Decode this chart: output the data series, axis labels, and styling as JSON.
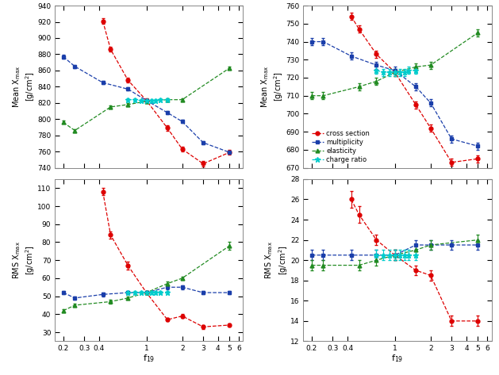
{
  "proton_mean_xmax": {
    "cross_section": {
      "x": [
        0.43,
        0.5,
        0.7,
        1.0,
        1.5,
        2.0,
        3.0,
        5.0
      ],
      "y": [
        921,
        886,
        848,
        823,
        789,
        763,
        745,
        759
      ],
      "yerr": [
        3,
        3,
        3,
        3,
        3,
        3,
        3,
        3
      ]
    },
    "multiplicity": {
      "x": [
        0.2,
        0.25,
        0.43,
        0.7,
        1.0,
        1.5,
        2.0,
        3.0,
        5.0
      ],
      "y": [
        877,
        865,
        845,
        837,
        823,
        808,
        797,
        771,
        759
      ],
      "yerr": [
        2,
        2,
        2,
        2,
        2,
        2,
        2,
        2,
        2
      ]
    },
    "elasticity": {
      "x": [
        0.2,
        0.25,
        0.5,
        0.7,
        1.0,
        1.5,
        2.0,
        5.0
      ],
      "y": [
        796,
        786,
        815,
        818,
        822,
        824,
        824,
        863
      ],
      "yerr": [
        2,
        2,
        2,
        2,
        2,
        2,
        2,
        2
      ]
    },
    "charge_ratio": {
      "x": [
        0.7,
        0.8,
        0.9,
        1.0,
        1.1,
        1.2,
        1.3,
        1.5
      ],
      "y": [
        824,
        824,
        823,
        823,
        823,
        823,
        824,
        824
      ],
      "yerr": [
        2,
        2,
        2,
        2,
        2,
        2,
        2,
        2
      ]
    }
  },
  "proton_rms_xmax": {
    "cross_section": {
      "x": [
        0.43,
        0.5,
        0.7,
        1.0,
        1.5,
        2.0,
        3.0,
        5.0
      ],
      "y": [
        108,
        84,
        67,
        52,
        37,
        39,
        33,
        34
      ],
      "yerr": [
        2,
        2,
        2,
        1,
        1,
        1,
        1,
        1
      ]
    },
    "multiplicity": {
      "x": [
        0.2,
        0.25,
        0.43,
        0.7,
        1.0,
        1.5,
        2.0,
        3.0,
        5.0
      ],
      "y": [
        52,
        49,
        51,
        52,
        52,
        55,
        55,
        52,
        52
      ],
      "yerr": [
        1,
        1,
        1,
        1,
        1,
        1,
        1,
        1,
        1
      ]
    },
    "elasticity": {
      "x": [
        0.2,
        0.25,
        0.5,
        0.7,
        1.0,
        1.5,
        2.0,
        5.0
      ],
      "y": [
        42,
        45,
        47,
        49,
        52,
        57,
        60,
        78
      ],
      "yerr": [
        1,
        1,
        1,
        1,
        1,
        1,
        1,
        2
      ]
    },
    "charge_ratio": {
      "x": [
        0.7,
        0.8,
        0.9,
        1.0,
        1.1,
        1.2,
        1.3,
        1.5
      ],
      "y": [
        52,
        52,
        52,
        52,
        52,
        52,
        52,
        52
      ],
      "yerr": [
        1,
        1,
        1,
        1,
        1,
        1,
        1,
        1
      ]
    }
  },
  "iron_mean_xmax": {
    "cross_section": {
      "x": [
        0.43,
        0.5,
        0.7,
        1.0,
        1.5,
        2.0,
        3.0,
        5.0
      ],
      "y": [
        754,
        747,
        733,
        723,
        705,
        692,
        673,
        675
      ],
      "yerr": [
        2,
        2,
        2,
        2,
        2,
        2,
        2,
        2
      ]
    },
    "multiplicity": {
      "x": [
        0.2,
        0.25,
        0.43,
        0.7,
        1.0,
        1.5,
        2.0,
        3.0,
        5.0
      ],
      "y": [
        740,
        740,
        732,
        727,
        724,
        715,
        706,
        686,
        682
      ],
      "yerr": [
        2,
        2,
        2,
        2,
        2,
        2,
        2,
        2,
        2
      ]
    },
    "elasticity": {
      "x": [
        0.2,
        0.25,
        0.5,
        0.7,
        1.0,
        1.5,
        2.0,
        5.0
      ],
      "y": [
        710,
        710,
        715,
        718,
        723,
        726,
        727,
        745
      ],
      "yerr": [
        2,
        2,
        2,
        2,
        2,
        2,
        2,
        2
      ]
    },
    "charge_ratio": {
      "x": [
        0.7,
        0.8,
        0.9,
        1.0,
        1.1,
        1.2,
        1.3,
        1.5
      ],
      "y": [
        724,
        723,
        723,
        723,
        723,
        723,
        724,
        724
      ],
      "yerr": [
        2,
        2,
        2,
        2,
        2,
        2,
        2,
        2
      ]
    }
  },
  "iron_rms_xmax": {
    "cross_section": {
      "x": [
        0.43,
        0.5,
        0.7,
        1.0,
        1.5,
        2.0,
        3.0,
        5.0
      ],
      "y": [
        26.0,
        24.5,
        22.0,
        20.5,
        19.0,
        18.5,
        14.0,
        14.0
      ],
      "yerr": [
        0.8,
        0.8,
        0.5,
        0.5,
        0.5,
        0.5,
        0.5,
        0.5
      ]
    },
    "multiplicity": {
      "x": [
        0.2,
        0.25,
        0.43,
        0.7,
        1.0,
        1.5,
        2.0,
        3.0,
        5.0
      ],
      "y": [
        20.5,
        20.5,
        20.5,
        20.5,
        20.5,
        21.5,
        21.5,
        21.5,
        21.5
      ],
      "yerr": [
        0.5,
        0.5,
        0.5,
        0.5,
        0.5,
        0.5,
        0.5,
        0.5,
        0.5
      ]
    },
    "elasticity": {
      "x": [
        0.2,
        0.25,
        0.5,
        0.7,
        1.0,
        1.5,
        2.0,
        5.0
      ],
      "y": [
        19.5,
        19.5,
        19.5,
        20.0,
        20.5,
        21.0,
        21.5,
        22.0
      ],
      "yerr": [
        0.5,
        0.5,
        0.5,
        0.5,
        0.5,
        0.5,
        0.5,
        0.5
      ]
    },
    "charge_ratio": {
      "x": [
        0.7,
        0.8,
        0.9,
        1.0,
        1.1,
        1.2,
        1.3,
        1.5
      ],
      "y": [
        20.5,
        20.5,
        20.5,
        20.5,
        20.5,
        20.5,
        20.5,
        20.5
      ],
      "yerr": [
        0.5,
        0.5,
        0.5,
        0.5,
        0.5,
        0.5,
        0.5,
        0.5
      ]
    }
  },
  "colors": {
    "cross_section": "#dd0000",
    "multiplicity": "#1a3eaa",
    "elasticity": "#228B22",
    "charge_ratio": "#00cccc"
  },
  "proton_mean_ylim": [
    740,
    940
  ],
  "proton_mean_yticks": [
    740,
    760,
    780,
    800,
    820,
    840,
    860,
    880,
    900,
    920,
    940
  ],
  "proton_rms_ylim": [
    25,
    115
  ],
  "proton_rms_yticks": [
    30,
    40,
    50,
    60,
    70,
    80,
    90,
    100,
    110
  ],
  "iron_mean_ylim": [
    670,
    760
  ],
  "iron_mean_yticks": [
    670,
    680,
    690,
    700,
    710,
    720,
    730,
    740,
    750,
    760
  ],
  "iron_rms_ylim": [
    12,
    28
  ],
  "iron_rms_yticks": [
    12,
    14,
    16,
    18,
    20,
    22,
    24,
    26,
    28
  ],
  "xlim": [
    0.17,
    6.5
  ],
  "xtick_vals": [
    0.2,
    0.3,
    0.4,
    1.0,
    2.0,
    3.0,
    4.0,
    5.0,
    6.0
  ],
  "xtick_labels": [
    "0.2",
    "0.3",
    "0.4",
    "1",
    "2",
    "3",
    "4",
    "5",
    "6"
  ]
}
